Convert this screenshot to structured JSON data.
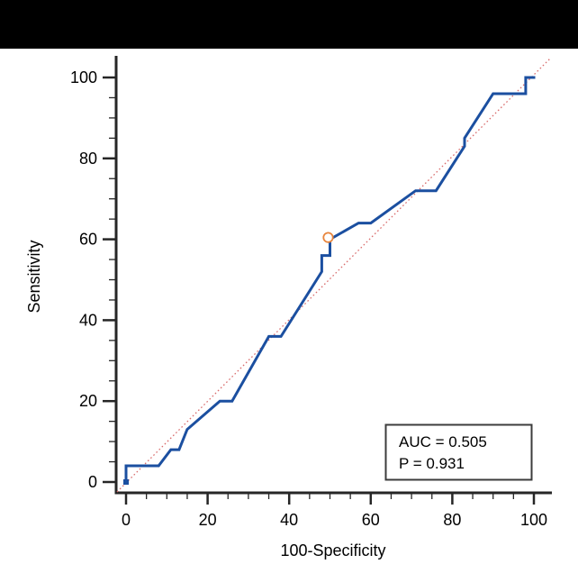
{
  "window": {
    "top_bar_color": "#000000",
    "background_color": "#ffffff"
  },
  "chart_data": {
    "type": "line",
    "title": "",
    "xlabel": "100-Specificity",
    "ylabel": "Sensitivity",
    "xlim": [
      0,
      100
    ],
    "ylim": [
      0,
      100
    ],
    "x_ticks": [
      0,
      20,
      40,
      60,
      80,
      100
    ],
    "y_ticks": [
      0,
      20,
      40,
      60,
      80,
      100
    ],
    "minor_tick_step": 5,
    "grid": "off",
    "legend": "none",
    "series": [
      {
        "name": "ROC curve",
        "color": "#1b4fa0",
        "style": "solid",
        "points": [
          [
            0,
            0
          ],
          [
            0,
            4
          ],
          [
            8,
            4
          ],
          [
            11,
            8
          ],
          [
            13,
            8
          ],
          [
            15,
            13
          ],
          [
            23,
            20
          ],
          [
            26,
            20
          ],
          [
            35,
            36
          ],
          [
            38,
            36
          ],
          [
            48,
            52
          ],
          [
            48,
            56
          ],
          [
            50,
            56
          ],
          [
            50,
            60
          ],
          [
            57,
            64
          ],
          [
            60,
            64
          ],
          [
            71,
            72
          ],
          [
            76,
            72
          ],
          [
            83,
            83
          ],
          [
            83,
            85
          ],
          [
            90,
            96
          ],
          [
            98,
            96
          ],
          [
            98,
            100
          ],
          [
            100,
            100
          ]
        ]
      },
      {
        "name": "reference diagonal (chance line)",
        "color": "#d96c6c",
        "style": "dotted",
        "points": [
          [
            0,
            0
          ],
          [
            100,
            100
          ]
        ]
      }
    ],
    "operating_point_marker": {
      "x": 50,
      "y": 60,
      "ring_color": "#e8853d",
      "fill_color": "#ffffff"
    },
    "annotation": {
      "lines": [
        "AUC = 0.505",
        "P = 0.931"
      ]
    },
    "axis_color": "#262626",
    "text_color": "#000000"
  }
}
